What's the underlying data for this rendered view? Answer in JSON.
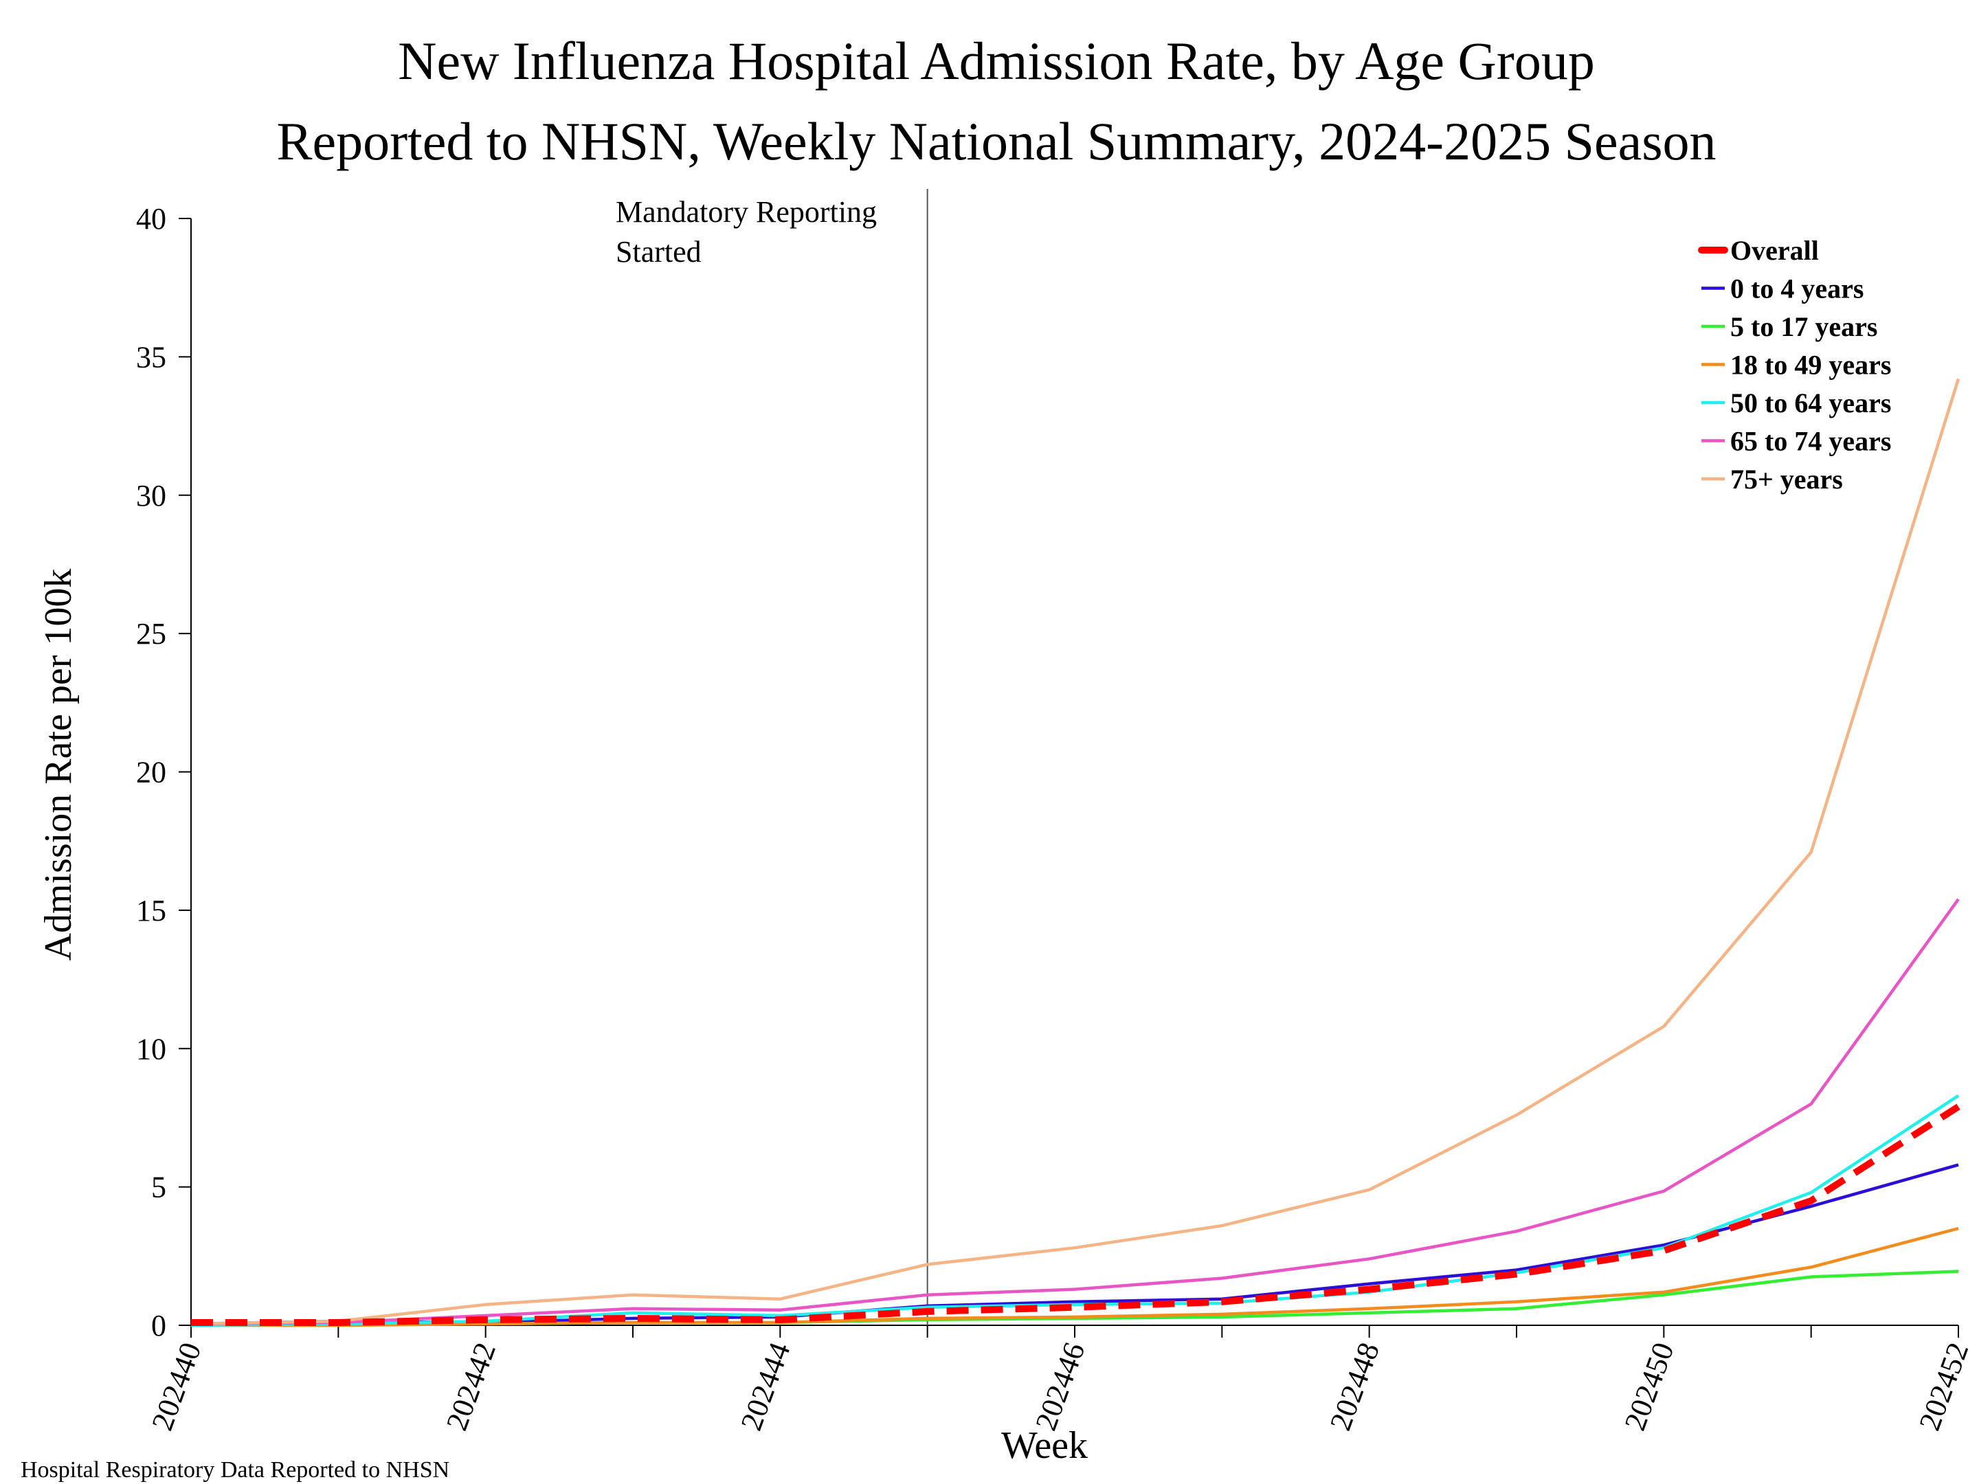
{
  "chart_data": {
    "type": "line",
    "title": "New Influenza Hospital Admission Rate, by Age Group",
    "subtitle": "Reported to NHSN, Weekly National Summary, 2024-2025 Season",
    "xlabel": "Week",
    "ylabel": "Admission Rate per 100k",
    "ylim": [
      0,
      40
    ],
    "yticks": [
      0,
      5,
      10,
      15,
      20,
      25,
      30,
      35,
      40
    ],
    "x": [
      "202440",
      "202441",
      "202442",
      "202443",
      "202444",
      "202445",
      "202446",
      "202447",
      "202448",
      "202449",
      "202450",
      "202451",
      "202452"
    ],
    "xtick_labels": [
      "202440",
      "202442",
      "202444",
      "202446",
      "202448",
      "202450",
      "202452"
    ],
    "annotation": {
      "text_lines": [
        "Mandatory Reporting",
        "Started"
      ],
      "at_x": "202445"
    },
    "legend_position": "top-right",
    "grid": false,
    "footer": "Hospital Respiratory Data Reported to NHSN",
    "series": [
      {
        "name": "Overall",
        "color": "#ff0000",
        "dashed": true,
        "values": [
          0.1,
          0.1,
          0.2,
          0.25,
          0.2,
          0.5,
          0.65,
          0.85,
          1.3,
          1.85,
          2.7,
          4.5,
          7.9
        ]
      },
      {
        "name": "0 to 4 years",
        "color": "#2c0fd6",
        "dashed": false,
        "values": [
          0.05,
          0.15,
          0.1,
          0.25,
          0.3,
          0.7,
          0.85,
          0.95,
          1.5,
          2.0,
          2.9,
          4.3,
          5.8
        ]
      },
      {
        "name": "5 to 17 years",
        "color": "#33ee33",
        "dashed": false,
        "values": [
          0.0,
          0.0,
          0.05,
          0.1,
          0.1,
          0.2,
          0.25,
          0.3,
          0.45,
          0.6,
          1.1,
          1.75,
          1.95
        ]
      },
      {
        "name": "18 to 49 years",
        "color": "#f28c1c",
        "dashed": false,
        "values": [
          0.0,
          0.0,
          0.05,
          0.1,
          0.1,
          0.25,
          0.3,
          0.4,
          0.6,
          0.85,
          1.2,
          2.1,
          3.5
        ]
      },
      {
        "name": "50 to 64 years",
        "color": "#22eeee",
        "dashed": false,
        "values": [
          0.0,
          0.05,
          0.15,
          0.45,
          0.35,
          0.65,
          0.75,
          0.8,
          1.2,
          1.9,
          2.8,
          4.8,
          8.3
        ]
      },
      {
        "name": "65 to 74 years",
        "color": "#e855c4",
        "dashed": false,
        "values": [
          0.05,
          0.1,
          0.35,
          0.6,
          0.55,
          1.1,
          1.3,
          1.7,
          2.4,
          3.4,
          4.85,
          8.0,
          15.4
        ]
      },
      {
        "name": "75+ years",
        "color": "#f5b486",
        "dashed": false,
        "values": [
          0.05,
          0.15,
          0.75,
          1.1,
          0.95,
          2.2,
          2.8,
          3.6,
          4.9,
          7.6,
          10.8,
          17.1,
          34.2
        ]
      }
    ]
  }
}
